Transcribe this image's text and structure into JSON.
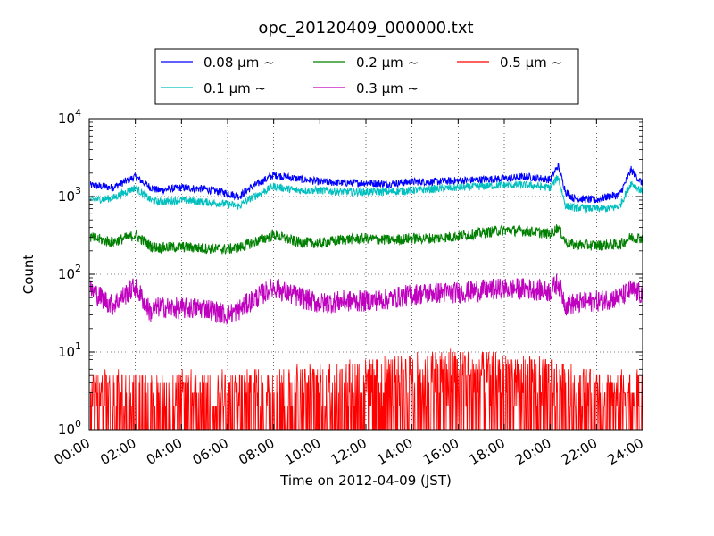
{
  "chart_data": {
    "type": "line",
    "title": "opc_20120409_000000.txt",
    "xlabel": "Time on 2012-04-09 (JST)",
    "ylabel": "Count",
    "yscale": "log",
    "ylim": [
      1,
      10000
    ],
    "xlim": [
      "00:00",
      "24:00"
    ],
    "y_ticks": [
      {
        "value": 1,
        "base": "10",
        "exp": "0"
      },
      {
        "value": 10,
        "base": "10",
        "exp": "1"
      },
      {
        "value": 100,
        "base": "10",
        "exp": "2"
      },
      {
        "value": 1000,
        "base": "10",
        "exp": "3"
      },
      {
        "value": 10000,
        "base": "10",
        "exp": "4"
      }
    ],
    "x_ticks": [
      "00:00",
      "02:00",
      "04:00",
      "06:00",
      "08:00",
      "10:00",
      "12:00",
      "14:00",
      "16:00",
      "18:00",
      "20:00",
      "22:00",
      "24:00"
    ],
    "grid": true,
    "legend_position": "top-center",
    "series": [
      {
        "name": "0.08 μm ~",
        "color": "#0000ff",
        "x": [
          "00:00",
          "01:00",
          "02:00",
          "02:40",
          "03:00",
          "04:00",
          "05:00",
          "06:00",
          "06:30",
          "07:00",
          "08:00",
          "09:00",
          "10:00",
          "11:00",
          "12:00",
          "13:00",
          "14:00",
          "15:00",
          "16:00",
          "17:00",
          "18:00",
          "19:00",
          "20:00",
          "20:20",
          "20:40",
          "21:00",
          "22:00",
          "22:30",
          "23:00",
          "23:30",
          "24:00"
        ],
        "y": [
          1400,
          1300,
          1800,
          1300,
          1200,
          1300,
          1250,
          1100,
          1000,
          1300,
          1900,
          1700,
          1550,
          1500,
          1500,
          1450,
          1550,
          1550,
          1600,
          1650,
          1700,
          1800,
          1650,
          2500,
          1150,
          950,
          900,
          1000,
          1050,
          2200,
          1450
        ]
      },
      {
        "name": "0.1 μm ~",
        "color": "#00bfbf",
        "x": [
          "00:00",
          "01:00",
          "02:00",
          "02:40",
          "03:00",
          "04:00",
          "05:00",
          "06:00",
          "06:30",
          "07:00",
          "08:00",
          "09:00",
          "10:00",
          "11:00",
          "12:00",
          "13:00",
          "14:00",
          "15:00",
          "16:00",
          "17:00",
          "18:00",
          "19:00",
          "20:00",
          "20:20",
          "20:40",
          "21:00",
          "22:00",
          "22:30",
          "23:00",
          "23:30",
          "24:00"
        ],
        "y": [
          900,
          950,
          1300,
          900,
          850,
          900,
          850,
          800,
          750,
          950,
          1350,
          1200,
          1200,
          1150,
          1150,
          1150,
          1200,
          1250,
          1300,
          1350,
          1400,
          1400,
          1300,
          1800,
          750,
          720,
          700,
          700,
          750,
          1500,
          1150
        ]
      },
      {
        "name": "0.2 μm ~",
        "color": "#008000",
        "x": [
          "00:00",
          "01:00",
          "02:00",
          "02:40",
          "03:00",
          "04:00",
          "05:00",
          "06:00",
          "06:30",
          "07:00",
          "08:00",
          "09:00",
          "10:00",
          "11:00",
          "12:00",
          "13:00",
          "14:00",
          "15:00",
          "16:00",
          "17:00",
          "18:00",
          "19:00",
          "20:00",
          "20:20",
          "20:40",
          "21:00",
          "22:00",
          "22:30",
          "23:00",
          "23:30",
          "24:00"
        ],
        "y": [
          300,
          260,
          320,
          230,
          220,
          225,
          215,
          210,
          220,
          250,
          320,
          260,
          250,
          280,
          290,
          275,
          290,
          290,
          310,
          340,
          370,
          360,
          330,
          400,
          260,
          240,
          235,
          240,
          240,
          300,
          290
        ]
      },
      {
        "name": "0.3 μm ~",
        "color": "#bf00bf",
        "x": [
          "00:00",
          "01:00",
          "02:00",
          "02:40",
          "03:00",
          "04:00",
          "05:00",
          "06:00",
          "06:30",
          "07:00",
          "08:00",
          "09:00",
          "10:00",
          "11:00",
          "12:00",
          "13:00",
          "14:00",
          "15:00",
          "16:00",
          "17:00",
          "18:00",
          "19:00",
          "20:00",
          "20:20",
          "20:40",
          "21:00",
          "22:00",
          "22:30",
          "23:00",
          "23:30",
          "24:00"
        ],
        "y": [
          65,
          40,
          70,
          32,
          38,
          36,
          37,
          30,
          35,
          45,
          68,
          52,
          42,
          45,
          45,
          48,
          55,
          58,
          58,
          62,
          65,
          65,
          60,
          80,
          40,
          42,
          45,
          48,
          50,
          62,
          55
        ]
      },
      {
        "name": "0.5 μm ~",
        "color": "#ff0000",
        "x": [
          "00:00",
          "02:00",
          "04:00",
          "06:00",
          "08:00",
          "10:00",
          "12:00",
          "14:00",
          "16:00",
          "18:00",
          "20:00",
          "22:00",
          "24:00"
        ],
        "y": [
          2,
          2,
          2,
          2,
          2.5,
          2.5,
          3,
          3.5,
          4,
          3.5,
          3,
          2,
          2
        ]
      }
    ]
  }
}
